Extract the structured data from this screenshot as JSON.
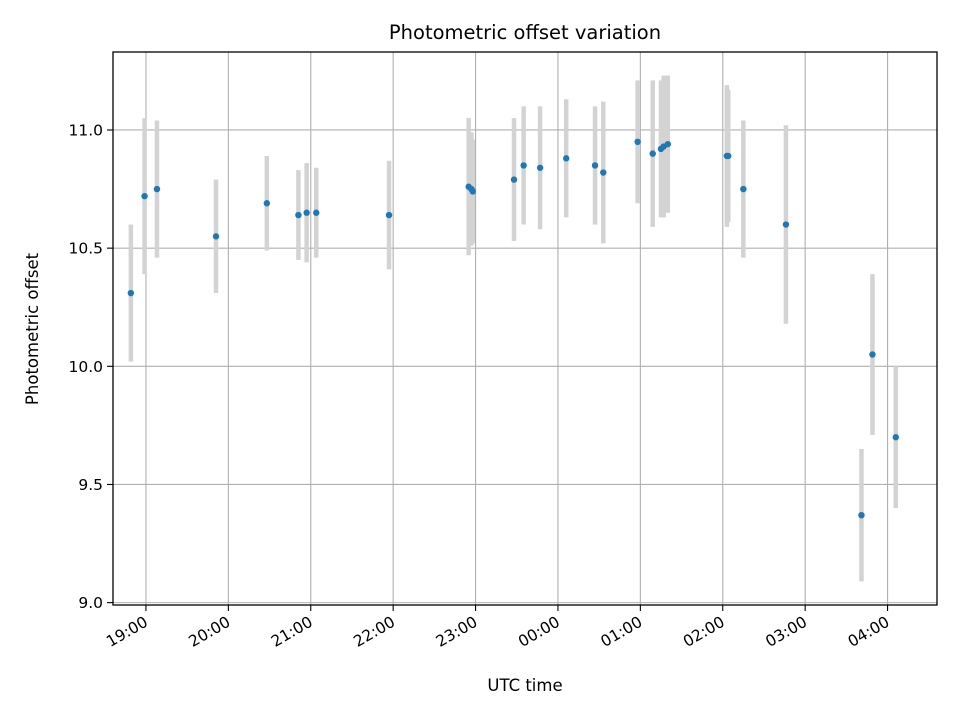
{
  "chart_data": {
    "type": "scatter",
    "title": "Photometric offset variation",
    "xlabel": "UTC time",
    "ylabel": "Photometric offset",
    "x_unit": "UTC",
    "xlim": [
      "18:36",
      "04:36"
    ],
    "ylim": [
      8.99,
      11.33
    ],
    "x_tick_labels": [
      "19:00",
      "20:00",
      "21:00",
      "22:00",
      "23:00",
      "00:00",
      "01:00",
      "02:00",
      "03:00",
      "04:00"
    ],
    "y_ticks": [
      9.0,
      9.5,
      10.0,
      10.5,
      11.0
    ],
    "y_tick_labels": [
      "9.0",
      "9.5",
      "10.0",
      "10.5",
      "11.0"
    ],
    "grid": true,
    "colors": {
      "point": "#1f77b4",
      "errorbar": "#d3d3d3",
      "grid": "#b0b0b0"
    },
    "points": [
      {
        "x": "18:49",
        "y": 10.31,
        "err": 0.29
      },
      {
        "x": "18:59",
        "y": 10.72,
        "err": 0.33
      },
      {
        "x": "19:08",
        "y": 10.75,
        "err": 0.29
      },
      {
        "x": "19:51",
        "y": 10.55,
        "err": 0.24
      },
      {
        "x": "20:28",
        "y": 10.69,
        "err": 0.2
      },
      {
        "x": "20:51",
        "y": 10.64,
        "err": 0.19
      },
      {
        "x": "20:57",
        "y": 10.65,
        "err": 0.21
      },
      {
        "x": "21:04",
        "y": 10.65,
        "err": 0.19
      },
      {
        "x": "21:57",
        "y": 10.64,
        "err": 0.23
      },
      {
        "x": "22:55",
        "y": 10.76,
        "err": 0.29
      },
      {
        "x": "22:57",
        "y": 10.75,
        "err": 0.24
      },
      {
        "x": "22:58",
        "y": 10.74,
        "err": 0.22
      },
      {
        "x": "23:28",
        "y": 10.79,
        "err": 0.26
      },
      {
        "x": "23:35",
        "y": 10.85,
        "err": 0.25
      },
      {
        "x": "23:47",
        "y": 10.84,
        "err": 0.26
      },
      {
        "x": "00:06",
        "y": 10.88,
        "err": 0.25
      },
      {
        "x": "00:27",
        "y": 10.85,
        "err": 0.25
      },
      {
        "x": "00:33",
        "y": 10.82,
        "err": 0.3
      },
      {
        "x": "00:58",
        "y": 10.95,
        "err": 0.26
      },
      {
        "x": "01:09",
        "y": 10.9,
        "err": 0.31
      },
      {
        "x": "01:15",
        "y": 10.92,
        "err": 0.29
      },
      {
        "x": "01:17",
        "y": 10.93,
        "err": 0.3
      },
      {
        "x": "01:20",
        "y": 10.94,
        "err": 0.29
      },
      {
        "x": "02:03",
        "y": 10.89,
        "err": 0.3
      },
      {
        "x": "02:04",
        "y": 10.89,
        "err": 0.28
      },
      {
        "x": "02:15",
        "y": 10.75,
        "err": 0.29
      },
      {
        "x": "02:46",
        "y": 10.6,
        "err": 0.42
      },
      {
        "x": "03:41",
        "y": 9.37,
        "err": 0.28
      },
      {
        "x": "03:49",
        "y": 10.05,
        "err": 0.34
      },
      {
        "x": "04:06",
        "y": 9.7,
        "err": 0.3
      }
    ]
  }
}
